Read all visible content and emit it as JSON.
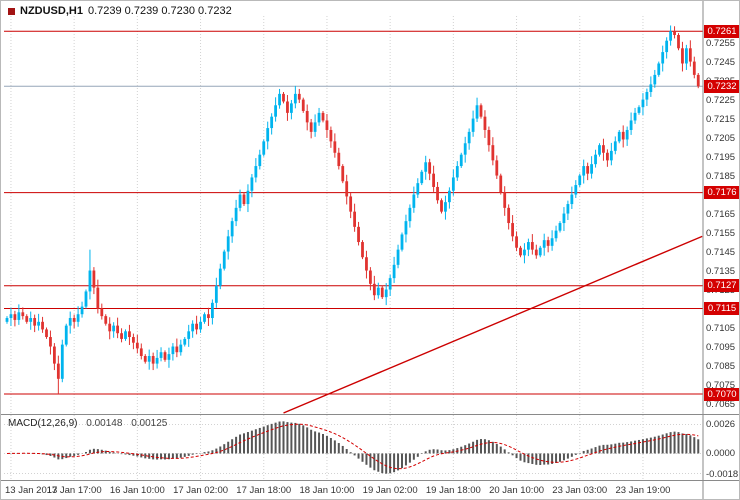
{
  "header": {
    "symbol": "NZDUSD,H1",
    "ohlc": "0.7239 0.7239 0.7230 0.7232"
  },
  "macd_panel": {
    "label": "MACD(12,26,9)",
    "value1": "0.00148",
    "value2": "0.00125",
    "ticks": [
      {
        "v": 0.0026,
        "label": "0.0026"
      },
      {
        "v": 0.0,
        "label": "0.0000"
      },
      {
        "v": -0.0018,
        "label": "-0.0018"
      }
    ]
  },
  "colors": {
    "up": "#00b4ee",
    "down": "#e03330",
    "hline": "#cc0000",
    "current_line": "#95a6b8",
    "badge_bg": "#d40000",
    "histogram": "#555555",
    "signal": "#d40000",
    "trend": "#cc0000",
    "grid": "#d2d2d2",
    "axis": "#8a8a8a"
  },
  "chart_data": {
    "type": "candlestick",
    "title": "NZDUSD H1 with MACD(12,26,9)",
    "symbol": "NZDUSD",
    "timeframe": "H1",
    "current_ohlc": {
      "open": 0.7239,
      "high": 0.7239,
      "low": 0.723,
      "close": 0.7232
    },
    "ylim": [
      0.706,
      0.7269
    ],
    "price_ticks": [
      "0.7255",
      "0.7245",
      "0.7235",
      "0.7225",
      "0.7215",
      "0.7205",
      "0.7195",
      "0.7185",
      "0.7175",
      "0.7165",
      "0.7155",
      "0.7145",
      "0.7135",
      "0.7125",
      "0.7115",
      "0.7105",
      "0.7095",
      "0.7085",
      "0.7075",
      "0.7065"
    ],
    "x_labels": [
      "13 Jan 2017",
      "13 Jan 17:00",
      "16 Jan 10:00",
      "17 Jan 02:00",
      "17 Jan 18:00",
      "18 Jan 10:00",
      "19 Jan 02:00",
      "19 Jan 18:00",
      "20 Jan 10:00",
      "23 Jan 03:00",
      "23 Jan 19:00"
    ],
    "label_bar_indices": [
      1,
      17,
      33,
      49,
      65,
      81,
      97,
      113,
      129,
      145,
      161
    ],
    "first_open": 0.7108,
    "closes": [
      0.711,
      0.7112,
      0.7109,
      0.7113,
      0.7111,
      0.7108,
      0.711,
      0.7106,
      0.7108,
      0.7104,
      0.71,
      0.7095,
      0.7086,
      0.7078,
      0.7096,
      0.7106,
      0.711,
      0.7108,
      0.7112,
      0.7116,
      0.7124,
      0.7135,
      0.7126,
      0.7115,
      0.7111,
      0.7107,
      0.7103,
      0.7106,
      0.7102,
      0.7099,
      0.7103,
      0.71,
      0.7097,
      0.7094,
      0.709,
      0.7087,
      0.709,
      0.7086,
      0.7089,
      0.7092,
      0.7088,
      0.7091,
      0.7095,
      0.7092,
      0.7096,
      0.7099,
      0.7103,
      0.7107,
      0.7104,
      0.7108,
      0.7112,
      0.711,
      0.7118,
      0.7127,
      0.7136,
      0.7145,
      0.7153,
      0.7161,
      0.7168,
      0.7175,
      0.717,
      0.7177,
      0.7184,
      0.719,
      0.7196,
      0.7203,
      0.721,
      0.7216,
      0.7222,
      0.7228,
      0.7224,
      0.7218,
      0.7223,
      0.7228,
      0.7225,
      0.7219,
      0.7213,
      0.7208,
      0.7213,
      0.7218,
      0.7214,
      0.7209,
      0.7203,
      0.7197,
      0.719,
      0.7182,
      0.7174,
      0.7166,
      0.7158,
      0.715,
      0.7142,
      0.7135,
      0.7128,
      0.7122,
      0.7126,
      0.7121,
      0.7125,
      0.7131,
      0.7138,
      0.7146,
      0.7154,
      0.7161,
      0.7168,
      0.7175,
      0.7181,
      0.7187,
      0.7192,
      0.7186,
      0.7179,
      0.7172,
      0.7166,
      0.7171,
      0.7177,
      0.7184,
      0.719,
      0.7196,
      0.7202,
      0.7208,
      0.7215,
      0.7222,
      0.7216,
      0.7209,
      0.7201,
      0.7193,
      0.7185,
      0.7176,
      0.7168,
      0.716,
      0.7153,
      0.7147,
      0.7143,
      0.7146,
      0.715,
      0.7146,
      0.7143,
      0.7147,
      0.7151,
      0.7148,
      0.7152,
      0.7156,
      0.716,
      0.7165,
      0.717,
      0.7175,
      0.718,
      0.7185,
      0.719,
      0.7186,
      0.7191,
      0.7196,
      0.7201,
      0.7197,
      0.7193,
      0.7198,
      0.7203,
      0.7208,
      0.7204,
      0.7209,
      0.7214,
      0.7218,
      0.7221,
      0.7225,
      0.7229,
      0.7233,
      0.7238,
      0.7244,
      0.725,
      0.7256,
      0.7261,
      0.7259,
      0.7252,
      0.7244,
      0.7252,
      0.7245,
      0.7238,
      0.7232
    ],
    "spike_overrides": [
      {
        "i": 13,
        "low": 0.707
      },
      {
        "i": 21,
        "high": 0.7146
      },
      {
        "i": 119,
        "high": 0.7226
      },
      {
        "i": 168,
        "high": 0.7264
      }
    ],
    "hlines": [
      {
        "price": 0.7261,
        "label": "0.7261",
        "line_color": "#cc0000"
      },
      {
        "price": 0.7232,
        "label": "0.7232",
        "line_color": "#95a6b8",
        "current": true
      },
      {
        "price": 0.7176,
        "label": "0.7176",
        "line_color": "#cc0000"
      },
      {
        "price": 0.7127,
        "label": "0.7127",
        "line_color": "#cc0000"
      },
      {
        "price": 0.7115,
        "label": "0.7115",
        "line_color": "#cc0000"
      },
      {
        "price": 0.707,
        "label": "0.7070",
        "line_color": "#cc0000"
      }
    ],
    "trendline": {
      "bar_start": 70,
      "price_start": 0.706,
      "bar_end": 176,
      "price_end": 0.7153
    },
    "macd": {
      "fast": 12,
      "slow": 26,
      "signal": 9,
      "ylim": [
        -0.0022,
        0.003
      ]
    }
  }
}
